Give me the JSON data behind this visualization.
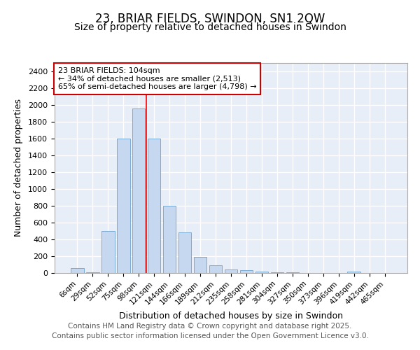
{
  "title1": "23, BRIAR FIELDS, SWINDON, SN1 2QW",
  "title2": "Size of property relative to detached houses in Swindon",
  "xlabel": "Distribution of detached houses by size in Swindon",
  "ylabel": "Number of detached properties",
  "bar_labels": [
    "6sqm",
    "29sqm",
    "52sqm",
    "75sqm",
    "98sqm",
    "121sqm",
    "144sqm",
    "166sqm",
    "189sqm",
    "212sqm",
    "235sqm",
    "258sqm",
    "281sqm",
    "304sqm",
    "327sqm",
    "350sqm",
    "373sqm",
    "396sqm",
    "419sqm",
    "442sqm",
    "465sqm"
  ],
  "bar_values": [
    55,
    8,
    500,
    1600,
    1960,
    1600,
    800,
    480,
    195,
    90,
    40,
    30,
    20,
    8,
    5,
    3,
    1,
    1,
    15,
    1,
    1
  ],
  "bar_color": "#c5d8f0",
  "bar_edge_color": "#7aaad4",
  "red_line_x": 4.5,
  "annotation_title": "23 BRIAR FIELDS: 104sqm",
  "annotation_line1": "← 34% of detached houses are smaller (2,513)",
  "annotation_line2": "65% of semi-detached houses are larger (4,798) →",
  "ylim": [
    0,
    2500
  ],
  "yticks": [
    0,
    200,
    400,
    600,
    800,
    1000,
    1200,
    1400,
    1600,
    1800,
    2000,
    2200,
    2400
  ],
  "background_color": "#ffffff",
  "plot_bg_color": "#e8eef8",
  "footer1": "Contains HM Land Registry data © Crown copyright and database right 2025.",
  "footer2": "Contains public sector information licensed under the Open Government Licence v3.0.",
  "annotation_box_color": "#ffffff",
  "annotation_box_edge": "#cc0000",
  "grid_color": "#ffffff",
  "title1_fontsize": 12,
  "title2_fontsize": 10,
  "footer_fontsize": 7.5
}
